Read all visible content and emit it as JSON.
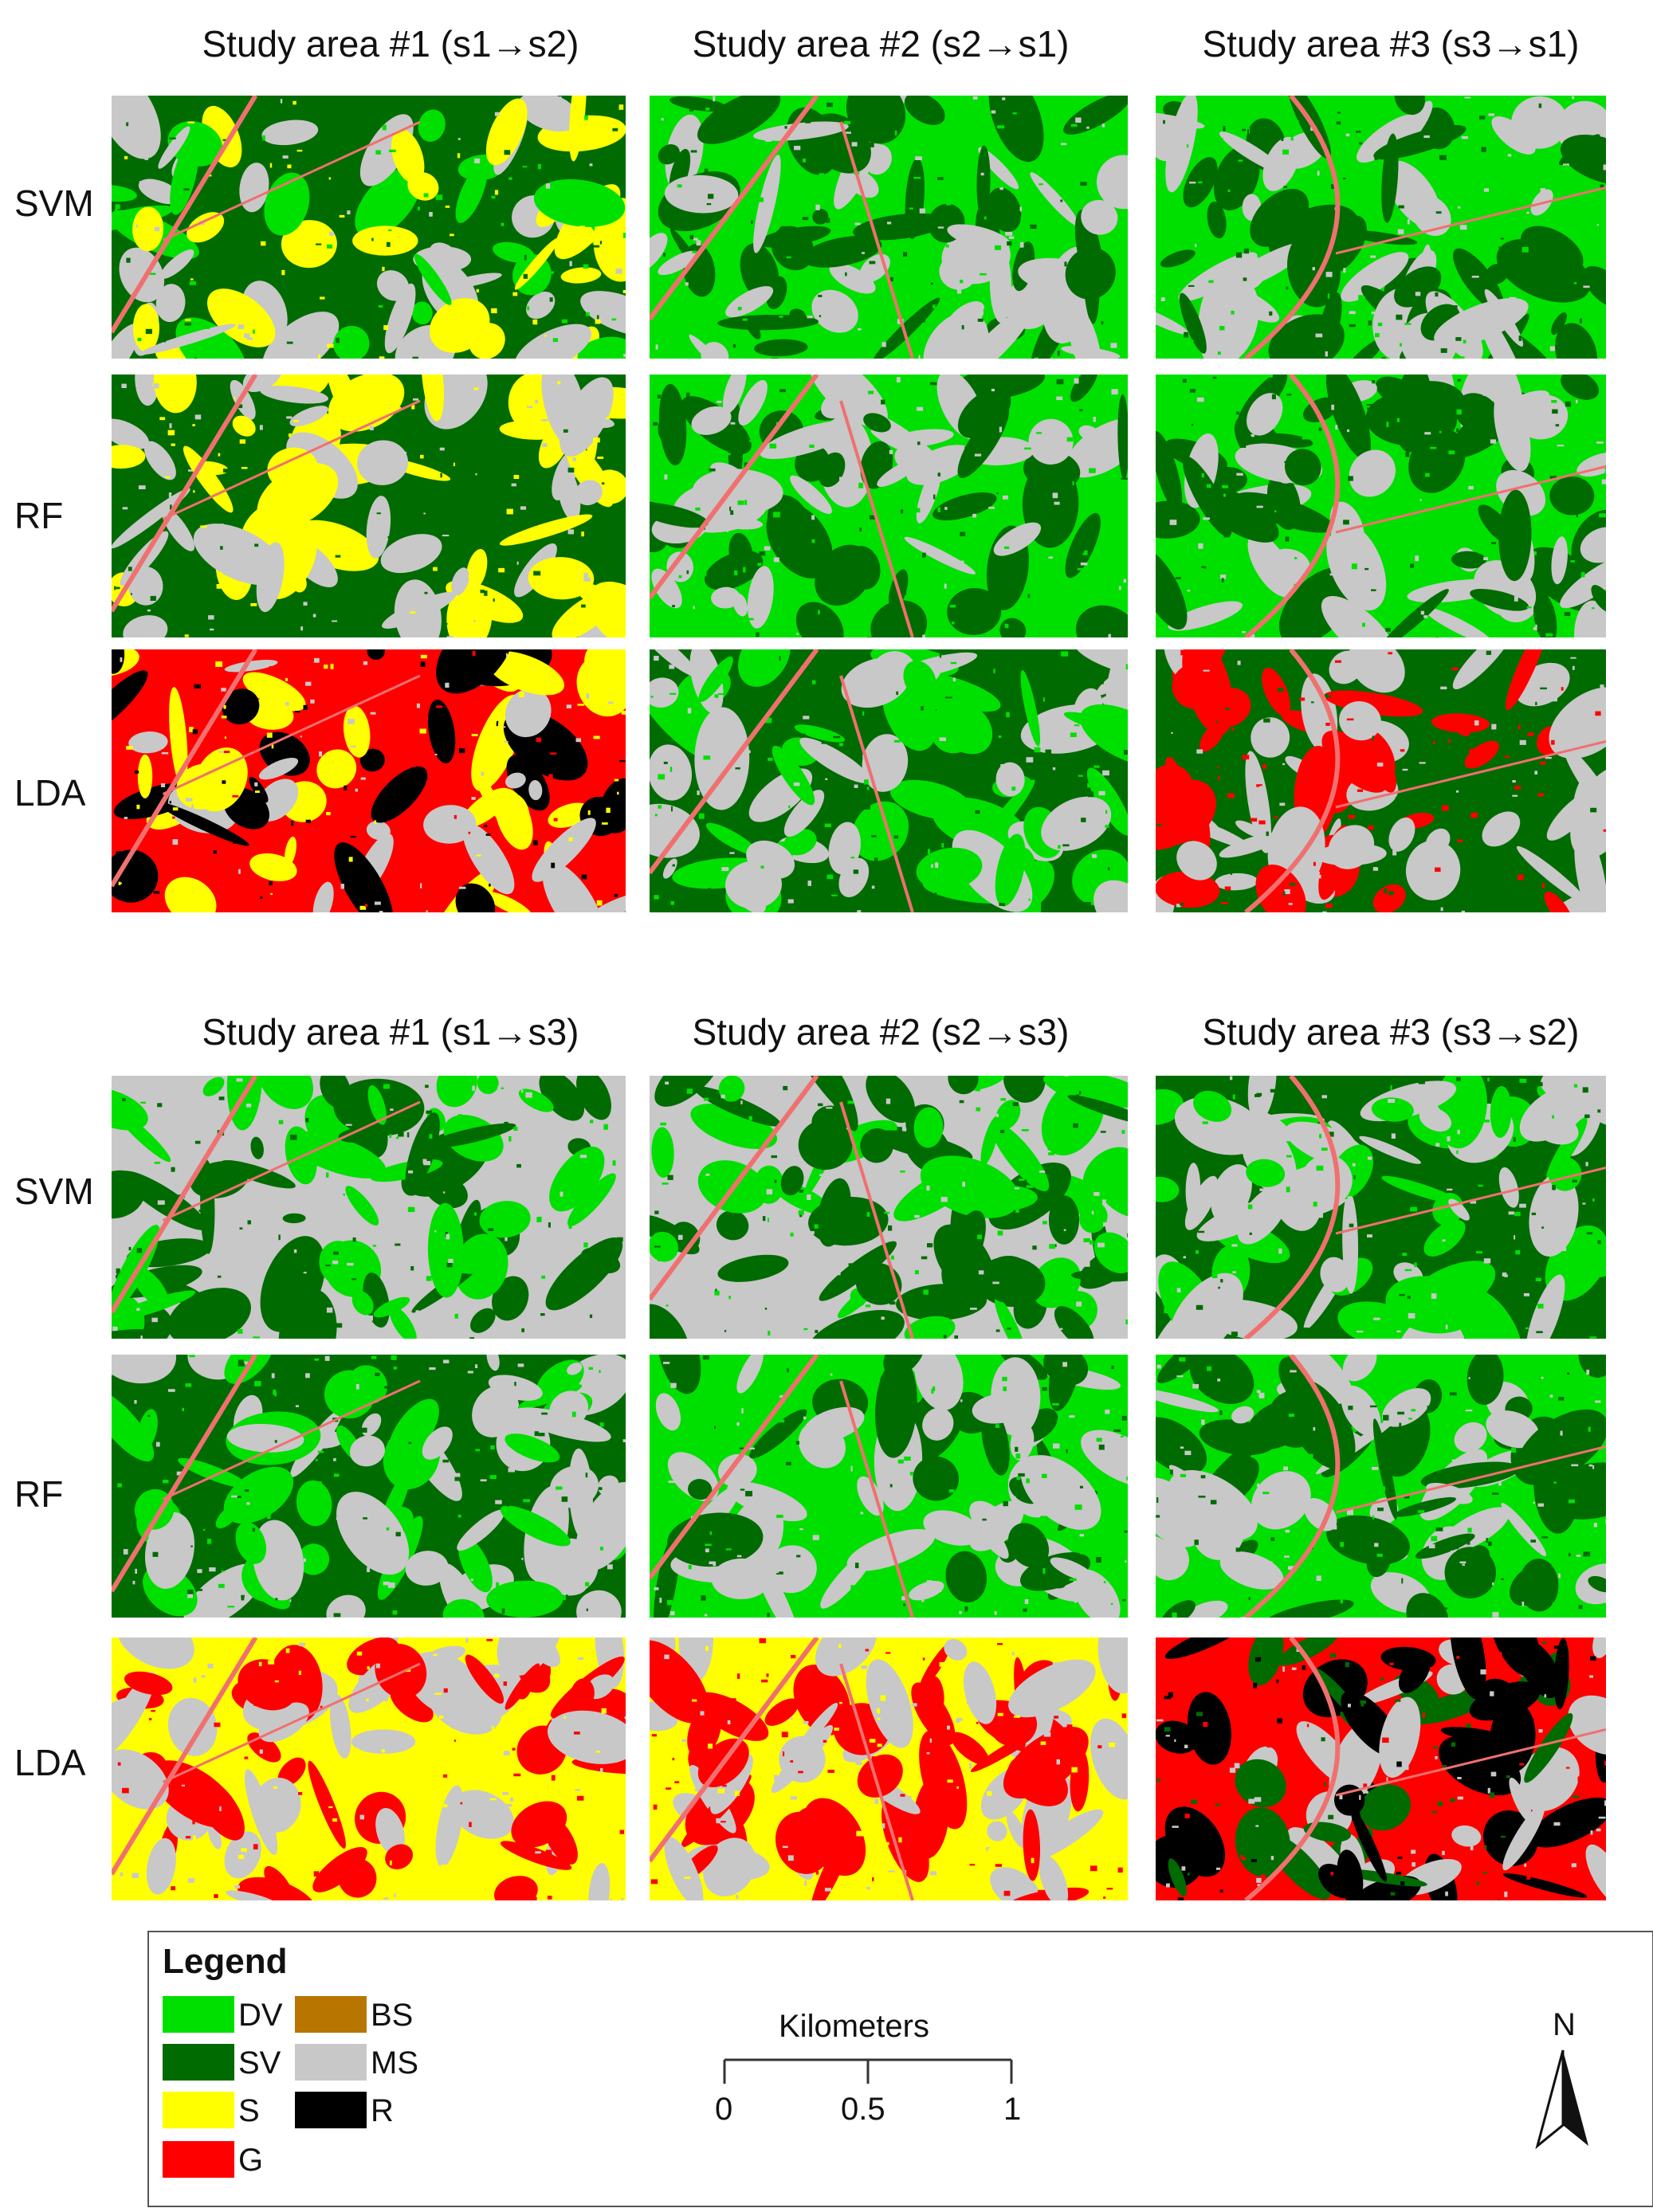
{
  "sections": [
    {
      "columns": [
        "Study area #1 (s1→s2)",
        "Study area #2 (s2→s1)",
        "Study area #3 (s3→s1)"
      ],
      "rows": [
        "SVM",
        "RF",
        "LDA"
      ]
    },
    {
      "columns": [
        "Study area #1 (s1→s3)",
        "Study area #2 (s2→s3)",
        "Study area #3 (s3→s2)"
      ],
      "rows": [
        "SVM",
        "RF",
        "LDA"
      ]
    }
  ],
  "panels": [
    {
      "section": 0,
      "row": "SVM",
      "area": 1,
      "dominant": [
        "SV",
        "MS",
        "DV",
        "S"
      ]
    },
    {
      "section": 0,
      "row": "SVM",
      "area": 2,
      "dominant": [
        "DV",
        "SV",
        "MS"
      ]
    },
    {
      "section": 0,
      "row": "SVM",
      "area": 3,
      "dominant": [
        "DV",
        "SV",
        "MS"
      ]
    },
    {
      "section": 0,
      "row": "RF",
      "area": 1,
      "dominant": [
        "SV",
        "MS",
        "S"
      ]
    },
    {
      "section": 0,
      "row": "RF",
      "area": 2,
      "dominant": [
        "DV",
        "SV",
        "MS"
      ]
    },
    {
      "section": 0,
      "row": "RF",
      "area": 3,
      "dominant": [
        "DV",
        "SV",
        "MS"
      ]
    },
    {
      "section": 0,
      "row": "LDA",
      "area": 1,
      "dominant": [
        "G",
        "R",
        "MS",
        "S"
      ]
    },
    {
      "section": 0,
      "row": "LDA",
      "area": 2,
      "dominant": [
        "SV",
        "MS",
        "DV"
      ]
    },
    {
      "section": 0,
      "row": "LDA",
      "area": 3,
      "dominant": [
        "SV",
        "MS",
        "G"
      ]
    },
    {
      "section": 1,
      "row": "SVM",
      "area": 1,
      "dominant": [
        "MS",
        "SV",
        "DV"
      ]
    },
    {
      "section": 1,
      "row": "SVM",
      "area": 2,
      "dominant": [
        "MS",
        "DV",
        "SV"
      ]
    },
    {
      "section": 1,
      "row": "SVM",
      "area": 3,
      "dominant": [
        "SV",
        "DV",
        "MS"
      ]
    },
    {
      "section": 1,
      "row": "RF",
      "area": 1,
      "dominant": [
        "SV",
        "MS",
        "DV"
      ]
    },
    {
      "section": 1,
      "row": "RF",
      "area": 2,
      "dominant": [
        "DV",
        "SV",
        "MS"
      ]
    },
    {
      "section": 1,
      "row": "RF",
      "area": 3,
      "dominant": [
        "DV",
        "SV",
        "MS"
      ]
    },
    {
      "section": 1,
      "row": "LDA",
      "area": 1,
      "dominant": [
        "S",
        "G",
        "MS"
      ]
    },
    {
      "section": 1,
      "row": "LDA",
      "area": 2,
      "dominant": [
        "S",
        "G",
        "MS"
      ]
    },
    {
      "section": 1,
      "row": "LDA",
      "area": 3,
      "dominant": [
        "G",
        "MS",
        "R",
        "SV"
      ]
    }
  ],
  "legend": {
    "title": "Legend",
    "items": [
      {
        "code": "DV",
        "color": "#00e000"
      },
      {
        "code": "SV",
        "color": "#006b00"
      },
      {
        "code": "S",
        "color": "#ffff00"
      },
      {
        "code": "G",
        "color": "#ff0000"
      },
      {
        "code": "BS",
        "color": "#b87500"
      },
      {
        "code": "MS",
        "color": "#c8c8c8"
      },
      {
        "code": "R",
        "color": "#000000"
      }
    ]
  },
  "scale_bar": {
    "title": "Kilometers",
    "ticks": [
      "0",
      "0.5",
      "1"
    ]
  },
  "north_arrow": {
    "label": "N"
  }
}
